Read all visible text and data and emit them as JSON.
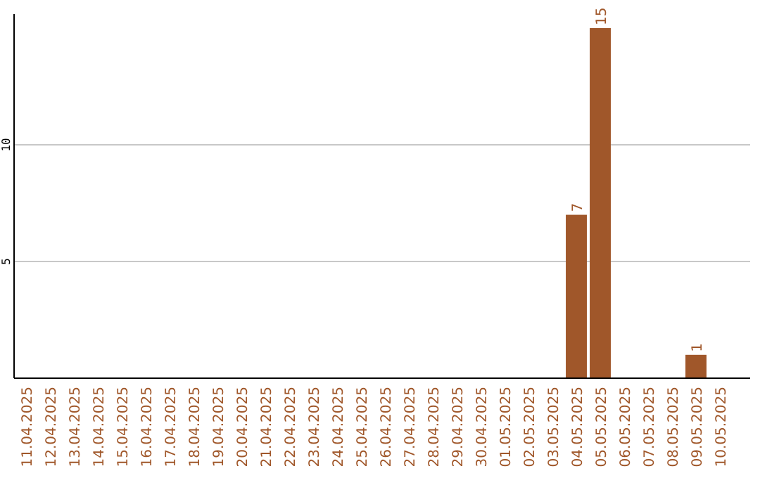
{
  "chart_data": {
    "type": "bar",
    "categories": [
      "11.04.2025",
      "12.04.2025",
      "13.04.2025",
      "14.04.2025",
      "15.04.2025",
      "16.04.2025",
      "17.04.2025",
      "18.04.2025",
      "19.04.2025",
      "20.04.2025",
      "21.04.2025",
      "22.04.2025",
      "23.04.2025",
      "24.04.2025",
      "25.04.2025",
      "26.04.2025",
      "27.04.2025",
      "28.04.2025",
      "29.04.2025",
      "30.04.2025",
      "01.05.2025",
      "02.05.2025",
      "03.05.2025",
      "04.05.2025",
      "05.05.2025",
      "06.05.2025",
      "07.05.2025",
      "08.05.2025",
      "09.05.2025",
      "10.05.2025"
    ],
    "values": [
      0,
      0,
      0,
      0,
      0,
      0,
      0,
      0,
      0,
      0,
      0,
      0,
      0,
      0,
      0,
      0,
      0,
      0,
      0,
      0,
      0,
      0,
      0,
      7,
      15,
      0,
      0,
      0,
      1,
      0
    ],
    "value_labels": [
      null,
      null,
      null,
      null,
      null,
      null,
      null,
      null,
      null,
      null,
      null,
      null,
      null,
      null,
      null,
      null,
      null,
      null,
      null,
      null,
      null,
      null,
      null,
      "7",
      "15",
      null,
      null,
      null,
      "1",
      null
    ],
    "color": "#a0572a",
    "ylim": [
      0,
      15.6
    ],
    "yticks": [
      5,
      10
    ],
    "grid": "y"
  }
}
